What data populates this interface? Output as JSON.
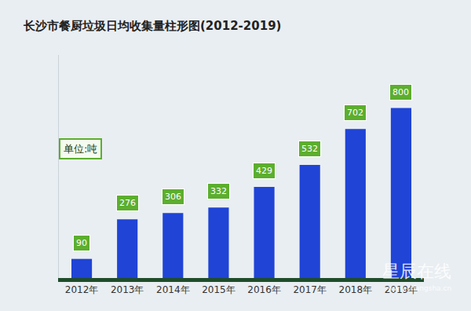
{
  "chart_data": {
    "type": "bar",
    "title": "长沙市餐厨垃圾日均收集量柱形图(2012-2019)",
    "categories": [
      "2012年",
      "2013年",
      "2014年",
      "2015年",
      "2016年",
      "2017年",
      "2018年",
      "2019年"
    ],
    "values": [
      90,
      276,
      306,
      332,
      429,
      532,
      702,
      800
    ],
    "color": "#1f44d6",
    "ylim": [
      0,
      1050
    ],
    "grid": false,
    "data_labels": true,
    "tick_labels": "x",
    "annotations": [
      "单位:吨",
      "星辰在线",
      "www.changsha.cn"
    ]
  }
}
